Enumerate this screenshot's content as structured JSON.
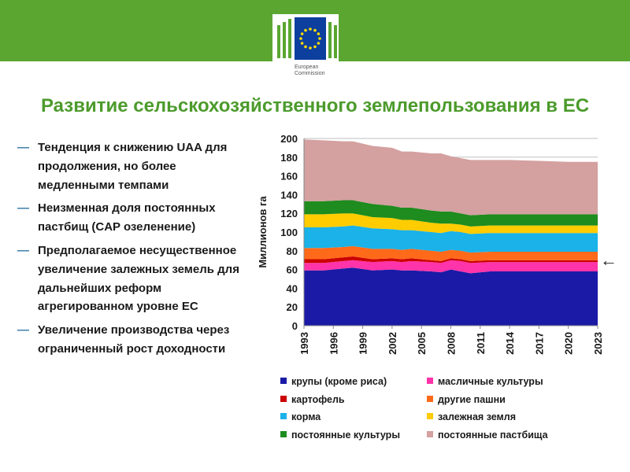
{
  "header": {
    "logo_line1": "European",
    "logo_line2": "Commission",
    "colors": {
      "band": "#5aa631",
      "title": "#4c9b2c",
      "eu_flag": "#0d3f9e",
      "stars": "#ffdd00"
    }
  },
  "title": "Развитие сельскохозяйственного землепользования в ЕС",
  "bullets": [
    {
      "dash": "—",
      "text": "Тенденция к снижению UAA для продолжения, но более медленными темпами"
    },
    {
      "dash": "—",
      "text": "Неизменная доля постоянных пастбищ (CAP озеленение)"
    },
    {
      "dash": "—",
      "text": "Предполагаемое несущественное увеличение залежных земель для дальнейших реформ агрегированном уровне ЕС"
    },
    {
      "dash": "—",
      "text": "Увеличение производства через ограниченный рост доходности"
    }
  ],
  "arrow": "←",
  "chart_data": {
    "type": "area",
    "stacked": true,
    "ylabel": "Миллионов га",
    "xlabel": "",
    "ylim": [
      0,
      200
    ],
    "yticks": [
      0,
      20,
      40,
      60,
      80,
      100,
      120,
      140,
      160,
      180,
      200
    ],
    "xticks": [
      "1993",
      "1996",
      "1999",
      "2002",
      "2005",
      "2008",
      "2011",
      "2014",
      "2017",
      "2020",
      "2023"
    ],
    "grid": true,
    "legend_position": "bottom",
    "x": [
      1993,
      1995,
      1997,
      1998,
      2000,
      2002,
      2003,
      2004,
      2006,
      2007,
      2008,
      2009,
      2010,
      2012,
      2014,
      2017,
      2020,
      2023
    ],
    "series": [
      {
        "name": "крупы (кроме риса)",
        "color": "#1a1aa6",
        "values": [
          59,
          59,
          61,
          62,
          59,
          60,
          59,
          59,
          58,
          57,
          60,
          58,
          56,
          58,
          58,
          58,
          58,
          58
        ]
      },
      {
        "name": "масличные культуры",
        "color": "#ff33aa",
        "values": [
          8,
          8,
          8,
          8,
          9,
          9,
          9,
          10,
          10,
          10,
          10,
          11,
          11,
          10,
          10,
          10,
          10,
          10
        ]
      },
      {
        "name": "картофель",
        "color": "#cc0000",
        "values": [
          4,
          4,
          4,
          4,
          3,
          3,
          3,
          3,
          2,
          2,
          2,
          2,
          2,
          2,
          2,
          2,
          2,
          2
        ]
      },
      {
        "name": "другие пашни",
        "color": "#ff6a1a",
        "values": [
          12,
          12,
          11,
          11,
          11,
          10,
          10,
          10,
          10,
          10,
          9,
          9,
          9,
          9,
          9,
          9,
          9,
          9
        ]
      },
      {
        "name": "корма",
        "color": "#1ab2e8",
        "values": [
          22,
          22,
          22,
          22,
          22,
          21,
          21,
          20,
          20,
          20,
          20,
          20,
          20,
          20,
          20,
          20,
          20,
          20
        ]
      },
      {
        "name": "залежная земля",
        "color": "#ffcc00",
        "values": [
          14,
          14,
          14,
          13,
          12,
          12,
          11,
          11,
          10,
          10,
          8,
          8,
          8,
          8,
          8,
          8,
          8,
          8
        ]
      },
      {
        "name": "постоянные культуры",
        "color": "#1e8c1e",
        "values": [
          14,
          14,
          14,
          14,
          14,
          13,
          13,
          13,
          13,
          13,
          13,
          12,
          12,
          12,
          12,
          12,
          12,
          12
        ]
      },
      {
        "name": "постоянные пастбища",
        "color": "#d4a0a0",
        "values": [
          66,
          65,
          63,
          63,
          62,
          62,
          60,
          60,
          61,
          62,
          59,
          59,
          59,
          58,
          58,
          57,
          56,
          56
        ]
      }
    ]
  }
}
